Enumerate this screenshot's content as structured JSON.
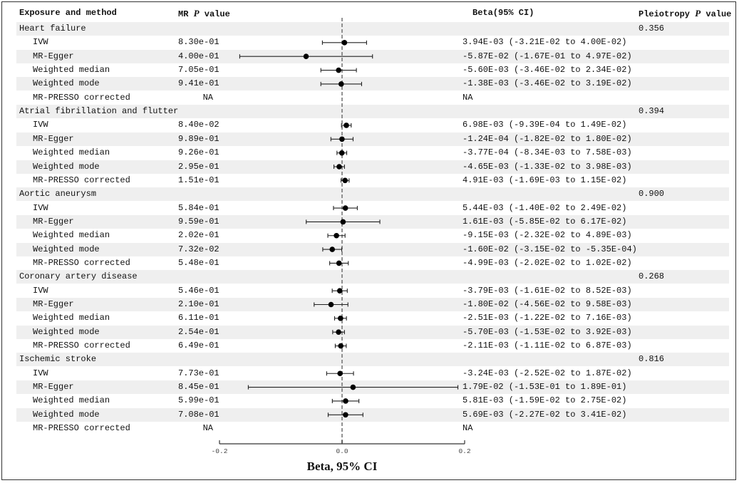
{
  "headers": {
    "exposure": "Exposure and method",
    "mr_p_prefix": "MR ",
    "mr_p_italic": "P",
    "mr_p_suffix": " value",
    "beta": "Beta(95% CI)",
    "pleio_prefix": "Pleiotropy ",
    "pleio_italic": "P",
    "pleio_suffix": " value"
  },
  "chart_data": {
    "type": "forest",
    "xlabel": "Beta, 95% CI",
    "xlim": [
      -0.2,
      0.2
    ],
    "xticks": [
      -0.2,
      0.0,
      0.2
    ],
    "xtick_labels": [
      "-0.2",
      "0.0",
      "0.2"
    ],
    "reference_line": 0.0,
    "groups": [
      {
        "name": "Heart failure",
        "pleiotropy_p": "0.356",
        "rows": [
          {
            "method": "IVW",
            "p": "8.30e-01",
            "beta": 0.00394,
            "lo": -0.0321,
            "hi": 0.04,
            "ci_text": "3.94E-03 (-3.21E-02 to 4.00E-02)"
          },
          {
            "method": "MR-Egger",
            "p": "4.00e-01",
            "beta": -0.0587,
            "lo": -0.167,
            "hi": 0.0497,
            "ci_text": "-5.87E-02 (-1.67E-01 to 4.97E-02)"
          },
          {
            "method": "Weighted median",
            "p": "7.05e-01",
            "beta": -0.0056,
            "lo": -0.0346,
            "hi": 0.0234,
            "ci_text": "-5.60E-03 (-3.46E-02 to 2.34E-02)"
          },
          {
            "method": "Weighted mode",
            "p": "9.41e-01",
            "beta": -0.00138,
            "lo": -0.0346,
            "hi": 0.0319,
            "ci_text": "-1.38E-03 (-3.46E-02 to 3.19E-02)"
          },
          {
            "method": "MR-PRESSO corrected",
            "p": "NA",
            "beta": null,
            "lo": null,
            "hi": null,
            "ci_text": "NA"
          }
        ]
      },
      {
        "name": "Atrial fibrillation and flutter",
        "pleiotropy_p": "0.394",
        "rows": [
          {
            "method": "IVW",
            "p": "8.40e-02",
            "beta": 0.00698,
            "lo": -0.000939,
            "hi": 0.0149,
            "ci_text": "6.98E-03 (-9.39E-04 to 1.49E-02)"
          },
          {
            "method": "MR-Egger",
            "p": "9.89e-01",
            "beta": -0.000124,
            "lo": -0.0182,
            "hi": 0.018,
            "ci_text": "-1.24E-04 (-1.82E-02 to 1.80E-02)"
          },
          {
            "method": "Weighted median",
            "p": "9.26e-01",
            "beta": -0.000377,
            "lo": -0.00834,
            "hi": 0.00758,
            "ci_text": "-3.77E-04 (-8.34E-03 to 7.58E-03)"
          },
          {
            "method": "Weighted mode",
            "p": "2.95e-01",
            "beta": -0.00465,
            "lo": -0.0133,
            "hi": 0.00398,
            "ci_text": "-4.65E-03 (-1.33E-02 to 3.98E-03)"
          },
          {
            "method": "MR-PRESSO corrected",
            "p": "1.51e-01",
            "beta": 0.00491,
            "lo": -0.00169,
            "hi": 0.0115,
            "ci_text": "4.91E-03 (-1.69E-03 to 1.15E-02)"
          }
        ]
      },
      {
        "name": "Aortic aneurysm",
        "pleiotropy_p": "0.900",
        "rows": [
          {
            "method": "IVW",
            "p": "5.84e-01",
            "beta": 0.00544,
            "lo": -0.014,
            "hi": 0.0249,
            "ci_text": "5.44E-03 (-1.40E-02 to 2.49E-02)"
          },
          {
            "method": "MR-Egger",
            "p": "9.59e-01",
            "beta": 0.00161,
            "lo": -0.0585,
            "hi": 0.0617,
            "ci_text": "1.61E-03 (-5.85E-02 to 6.17E-02)"
          },
          {
            "method": "Weighted median",
            "p": "2.02e-01",
            "beta": -0.00915,
            "lo": -0.0232,
            "hi": 0.00489,
            "ci_text": "-9.15E-03 (-2.32E-02 to 4.89E-03)"
          },
          {
            "method": "Weighted mode",
            "p": "7.32e-02",
            "beta": -0.016,
            "lo": -0.0315,
            "hi": -0.000535,
            "ci_text": "-1.60E-02 (-3.15E-02 to -5.35E-04)"
          },
          {
            "method": "MR-PRESSO corrected",
            "p": "5.48e-01",
            "beta": -0.00499,
            "lo": -0.0202,
            "hi": 0.0102,
            "ci_text": "-4.99E-03 (-2.02E-02 to 1.02E-02)"
          }
        ]
      },
      {
        "name": "Coronary artery disease",
        "pleiotropy_p": "0.268",
        "rows": [
          {
            "method": "IVW",
            "p": "5.46e-01",
            "beta": -0.00379,
            "lo": -0.0161,
            "hi": 0.00852,
            "ci_text": "-3.79E-03 (-1.61E-02 to 8.52E-03)"
          },
          {
            "method": "MR-Egger",
            "p": "2.10e-01",
            "beta": -0.018,
            "lo": -0.0456,
            "hi": 0.00958,
            "ci_text": "-1.80E-02 (-4.56E-02 to 9.58E-03)"
          },
          {
            "method": "Weighted median",
            "p": "6.11e-01",
            "beta": -0.00251,
            "lo": -0.0122,
            "hi": 0.00716,
            "ci_text": "-2.51E-03 (-1.22E-02 to 7.16E-03)"
          },
          {
            "method": "Weighted mode",
            "p": "2.54e-01",
            "beta": -0.0057,
            "lo": -0.0153,
            "hi": 0.00392,
            "ci_text": "-5.70E-03 (-1.53E-02 to 3.92E-03)"
          },
          {
            "method": "MR-PRESSO corrected",
            "p": "6.49e-01",
            "beta": -0.00211,
            "lo": -0.0111,
            "hi": 0.00687,
            "ci_text": "-2.11E-03 (-1.11E-02 to 6.87E-03)"
          }
        ]
      },
      {
        "name": "Ischemic stroke",
        "pleiotropy_p": "0.816",
        "rows": [
          {
            "method": "IVW",
            "p": "7.73e-01",
            "beta": -0.00324,
            "lo": -0.0252,
            "hi": 0.0187,
            "ci_text": "-3.24E-03 (-2.52E-02 to 1.87E-02)"
          },
          {
            "method": "MR-Egger",
            "p": "8.45e-01",
            "beta": 0.0179,
            "lo": -0.153,
            "hi": 0.189,
            "ci_text": "1.79E-02 (-1.53E-01 to 1.89E-01)"
          },
          {
            "method": "Weighted median",
            "p": "5.99e-01",
            "beta": 0.00581,
            "lo": -0.0159,
            "hi": 0.0275,
            "ci_text": "5.81E-03 (-1.59E-02 to 2.75E-02)"
          },
          {
            "method": "Weighted mode",
            "p": "7.08e-01",
            "beta": 0.00569,
            "lo": -0.0227,
            "hi": 0.0341,
            "ci_text": "5.69E-03 (-2.27E-02 to 3.41E-02)"
          },
          {
            "method": "MR-PRESSO corrected",
            "p": "NA",
            "beta": null,
            "lo": null,
            "hi": null,
            "ci_text": "NA"
          }
        ]
      }
    ]
  }
}
